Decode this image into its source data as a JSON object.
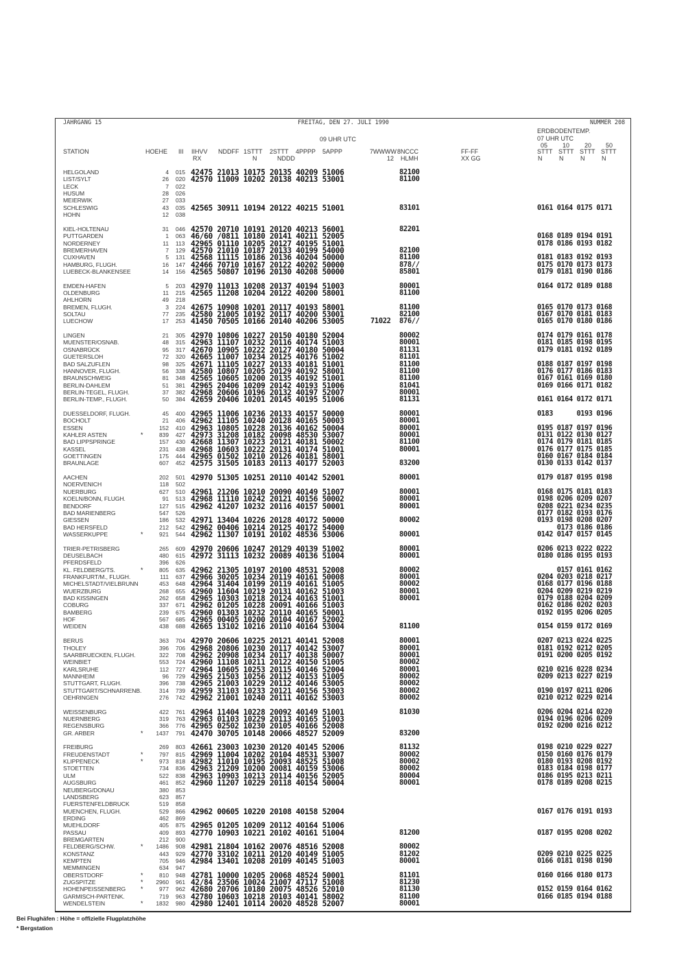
{
  "header": {
    "volume": "JAHRGANG 15",
    "date": "FREITAG, DEN 27. JULI 1990",
    "number": "NUMMER 208",
    "obs_time": "09 UHR UTC",
    "soil_title": "ERDBODENTEMP.",
    "soil_time": "07 UHR UTC",
    "soil_depths": [
      "05",
      "10",
      "20",
      "50"
    ]
  },
  "columns": {
    "station": "STATION",
    "hoehe": "HOEHE",
    "iii": "III",
    "g1": "IIHVV",
    "g1b": "RX",
    "g2": "NDDFF",
    "g3": "1STTT",
    "g3b": "N",
    "g4": "2STTT",
    "g4b": "NDDD",
    "g5": "4PPPP",
    "g6": "5APPP",
    "w7": "7WWWW",
    "w7b": "12",
    "g8": "8NCCC",
    "g8b": "HLMH",
    "ff": "FF-FF",
    "ffb": "XX GG",
    "soil": [
      "STTT",
      "STTT",
      "STTT",
      "STTT"
    ],
    "soilb": [
      "N",
      "N",
      "N",
      "N"
    ]
  },
  "groups": [
    {
      "rows": [
        [
          "HELGOLAND",
          "",
          "4",
          "015",
          "42475 21013 10175 20135 40209 51006",
          "",
          "82100",
          ""
        ],
        [
          "LIST/SYLT",
          "",
          "26",
          "020",
          "42570 11009 10202 20138 40213 53001",
          "",
          "81100",
          ""
        ],
        [
          "LECK",
          "",
          "7",
          "022",
          "",
          "",
          "",
          ""
        ],
        [
          "HUSUM",
          "",
          "28",
          "026",
          "",
          "",
          "",
          ""
        ],
        [
          "MEIERWIK",
          "",
          "27",
          "033",
          "",
          "",
          "",
          ""
        ],
        [
          "SCHLESWIG",
          "",
          "43",
          "035",
          "42565 30911 10194 20122 40215 51001",
          "",
          "83101",
          "0161 0164 0175 0171"
        ],
        [
          "HOHN",
          "",
          "12",
          "038",
          "",
          "",
          "",
          ""
        ]
      ]
    },
    {
      "rows": [
        [
          "KIEL-HOLTENAU",
          "",
          "31",
          "046",
          "42570 20710 10191 20120 40213 56001",
          "",
          "82201",
          ""
        ],
        [
          "PUTTGARDEN",
          "",
          "1",
          "063",
          "46/60 /0811 10180 20141 40211 52005",
          "",
          "",
          "0168 0189 0194 0191"
        ],
        [
          "NORDERNEY",
          "",
          "11",
          "113",
          "42965 01110 10205 20127 40195 51001",
          "",
          "",
          "0178 0186 0193 0182"
        ],
        [
          "BREMERHAVEN",
          "",
          "7",
          "129",
          "42570 21010 10187 20133 40199 54000",
          "",
          "82100",
          ""
        ],
        [
          "CUXHAVEN",
          "",
          "5",
          "131",
          "42568 11115 10186 20136 40204 50000",
          "",
          "81100",
          "0181 0183 0192 0193"
        ],
        [
          "HAMBURG, FLUGH.",
          "",
          "16",
          "147",
          "42466 70710 10167 20122 40202 50000",
          "",
          "878//",
          "0175 0170 0173 0173"
        ],
        [
          "LUEBECK-BLANKENSEE",
          "",
          "14",
          "156",
          "42565 50807 10196 20130 40208 50000",
          "",
          "85801",
          "0179 0181 0190 0186"
        ]
      ]
    },
    {
      "rows": [
        [
          "EMDEN-HAFEN",
          "",
          "5",
          "203",
          "42970 11013 10208 20137 40194 51003",
          "",
          "80001",
          "0164 0172 0189 0188"
        ],
        [
          "OLDENBURG",
          "",
          "11",
          "215",
          "42565 11208 10204 20122 40200 58001",
          "",
          "81100",
          ""
        ],
        [
          "AHLHORN",
          "",
          "49",
          "218",
          "",
          "",
          "",
          ""
        ],
        [
          "BREMEN, FLUGH.",
          "",
          "3",
          "224",
          "42675 10908 10201 20117 40193 58001",
          "",
          "81100",
          "0165 0170 0173 0168"
        ],
        [
          "SOLTAU",
          "",
          "77",
          "235",
          "42580 21005 10192 20117 40200 53001",
          "",
          "82100",
          "0167 0170 0181 0183"
        ],
        [
          "LUECHOW",
          "",
          "17",
          "253",
          "41450 70505 10166 20140 40206 53005",
          "71022",
          "876//",
          "0165 0170 0180 0186"
        ]
      ]
    },
    {
      "rows": [
        [
          "LINGEN",
          "",
          "21",
          "305",
          "42970 10806 10227 20150 40180 52004",
          "",
          "80002",
          "0174 0179 0161 0178"
        ],
        [
          "MUENSTER/OSNAB.",
          "",
          "48",
          "315",
          "42963 11107 10232 20116 40174 51003",
          "",
          "80001",
          "0181 0185 0198 0195"
        ],
        [
          "OSNABRÜCK",
          "",
          "95",
          "317",
          "42670 10905 10222 20127 40180 50004",
          "",
          "81131",
          "0179 0181 0192 0189"
        ],
        [
          "GUETERSLOH",
          "",
          "72",
          "320",
          "42665 11007 10234 20125 40176 51002",
          "",
          "81101",
          ""
        ],
        [
          "BAD SALZUFLEN",
          "",
          "98",
          "325",
          "42671 11105 10227 20133 40181 51001",
          "",
          "81100",
          "0188 0187 0197 0198"
        ],
        [
          "HANNOVER, FLUGH.",
          "",
          "56",
          "338",
          "42580 10807 10205 20129 40192 58001",
          "",
          "81100",
          "0176 0177 0186 0183"
        ],
        [
          "BRAUNSCHWEIG",
          "",
          "81",
          "348",
          "42565 10605 10200 20135 40192 51001",
          "",
          "81100",
          "0167 0161 0169 0180"
        ],
        [
          "BERLIN-DAHLEM",
          "",
          "51",
          "381",
          "42965 20406 10209 20142 40193 51006",
          "",
          "81041",
          "0169 0166 0171 0182"
        ],
        [
          "BERLIN-TEGEL, FLUGH.",
          "",
          "37",
          "382",
          "42968 20606 10196 20132 40197 52007",
          "",
          "80001",
          ""
        ],
        [
          "BERLIN-TEMP., FLUGH.",
          "",
          "50",
          "384",
          "42659 20406 10201 20145 40195 51006",
          "",
          "81131",
          "0161 0164 0172 0171"
        ]
      ]
    },
    {
      "rows": [
        [
          "DUESSELDORF, FLUGH.",
          "",
          "45",
          "400",
          "42965 11006 10236 20133 40157 50000",
          "",
          "80001",
          "0183      0193 0196"
        ],
        [
          "BOCHOLT",
          "",
          "21",
          "406",
          "42962 11105 10240 20128 40165 50003",
          "",
          "80001",
          ""
        ],
        [
          "ESSEN",
          "",
          "152",
          "410",
          "42963 10805 10228 20136 40162 50004",
          "",
          "80001",
          "0195 0187 0197 0196"
        ],
        [
          "KAHLER ASTEN",
          "*",
          "839",
          "427",
          "42973 31208 10182 20098 48530 53007",
          "",
          "80001",
          "0131 0122 0130 0127"
        ],
        [
          "BAD LIPPSPRINGE",
          "",
          "157",
          "430",
          "42668 11307 10223 20121 40181 50002",
          "",
          "81100",
          "0174 0179 0181 0185"
        ],
        [
          "KASSEL",
          "",
          "231",
          "438",
          "42968 10603 10222 20131 40174 51001",
          "",
          "80001",
          "0176 0177 0175 0185"
        ],
        [
          "GOETTINGEN",
          "",
          "175",
          "444",
          "42965 01502 10210 20126 40181 58001",
          "",
          "",
          "0160 0167 0184 0184"
        ],
        [
          "BRAUNLAGE",
          "",
          "607",
          "452",
          "42575 31505 10183 20113 40177 52003",
          "",
          "83200",
          "0130 0133 0142 0137"
        ]
      ]
    },
    {
      "rows": [
        [
          "AACHEN",
          "",
          "202",
          "501",
          "42970 51305 10251 20110 40142 52001",
          "",
          "80001",
          "0179 0187 0195 0198"
        ],
        [
          "NOERVENICH",
          "",
          "118",
          "502",
          "",
          "",
          "",
          ""
        ],
        [
          "NUERBURG",
          "",
          "627",
          "510",
          "42961 21206 10210 20090 40149 51007",
          "",
          "80001",
          "0168 0175 0181 0183"
        ],
        [
          "KOELN/BONN, FLUGH.",
          "",
          "91",
          "513",
          "42968 11110 10242 20121 40156 50002",
          "",
          "80001",
          "0198 0206 0209 0207"
        ],
        [
          "BENDORF",
          "",
          "127",
          "515",
          "42962 41207 10232 20116 40157 50001",
          "",
          "80001",
          "0208 0221 0234 0235"
        ],
        [
          "BAD MARIENBERG",
          "",
          "547",
          "526",
          "",
          "",
          "",
          "0177 0182 0193 0176"
        ],
        [
          "GIESSEN",
          "",
          "186",
          "532",
          "42971 13404 10226 20128 40172 50000",
          "",
          "80002",
          "0193 0198 0208 0207"
        ],
        [
          "BAD HERSFELD",
          "",
          "212",
          "542",
          "42962 00406 10214 20125 40172 54000",
          "",
          "",
          "     0173 0186 0186"
        ],
        [
          "WASSERKUPPE",
          "*",
          "921",
          "544",
          "42962 11307 10191 20102 48536 53006",
          "",
          "80001",
          "0142 0147 0157 0145"
        ]
      ]
    },
    {
      "rows": [
        [
          "TRIER-PETRISBERG",
          "",
          "265",
          "609",
          "42970 20606 10247 20129 40139 51002",
          "",
          "80001",
          "0206 0213 0222 0222"
        ],
        [
          "DEUSELBACH",
          "",
          "480",
          "615",
          "42972 31113 10232 20089 40136 51004",
          "",
          "80001",
          "0180 0186 0195 0193"
        ],
        [
          "PFERDSFELD",
          "",
          "396",
          "626",
          "",
          "",
          "",
          ""
        ],
        [
          "KL. FELDBERG/TS.",
          "*",
          "805",
          "635",
          "42962 21305 10197 20100 48531 52008",
          "",
          "80002",
          "     0157 0161 0162"
        ],
        [
          "FRANKFURT/M., FLUGH.",
          "",
          "111",
          "637",
          "42966 30205 10234 20119 40161 50008",
          "",
          "80001",
          "0204 0203 0218 0217"
        ],
        [
          "MICHELSTADT/VIELBRUNN",
          "",
          "453",
          "648",
          "42964 31404 10199 20119 40161 51005",
          "",
          "80002",
          "0168 0177 0196 0188"
        ],
        [
          "WUERZBURG",
          "",
          "268",
          "655",
          "42960 11604 10219 20131 40162 51003",
          "",
          "80001",
          "0204 0209 0219 0219"
        ],
        [
          "BAD KISSINGEN",
          "",
          "262",
          "658",
          "42965 10303 10218 20124 40163 51001",
          "",
          "80001",
          "0179 0188 0204 0209"
        ],
        [
          "COBURG",
          "",
          "337",
          "671",
          "42962 01205 10228 20091 40166 51003",
          "",
          "",
          "0162 0186 0202 0203"
        ],
        [
          "BAMBERG",
          "",
          "239",
          "675",
          "42960 01303 10232 20110 40165 50001",
          "",
          "",
          "0192 0195 0206 0205"
        ],
        [
          "HOF",
          "",
          "567",
          "685",
          "42965 00405 10200 20104 40167 52002",
          "",
          "",
          ""
        ],
        [
          "WEIDEN",
          "",
          "438",
          "688",
          "42665 13102 10216 20110 40164 53004",
          "",
          "81100",
          "0154 0159 0172 0169"
        ]
      ]
    },
    {
      "rows": [
        [
          "BERUS",
          "",
          "363",
          "704",
          "42970 20606 10225 20121 40141 52008",
          "",
          "80001",
          "0207 0213 0224 0225"
        ],
        [
          "THOLEY",
          "",
          "396",
          "706",
          "42968 20806 10230 20117 40142 53007",
          "",
          "80001",
          "0181 0192 0212 0205"
        ],
        [
          "SAARBRUECKEN, FLUGH.",
          "",
          "322",
          "708",
          "42962 20908 10234 20117 40138 50007",
          "",
          "80001",
          "0191 0200 0205 0192"
        ],
        [
          "WEINBIET",
          "",
          "553",
          "724",
          "42960 11108 10211 20122 40150 51005",
          "",
          "80002",
          ""
        ],
        [
          "KARLSRUHE",
          "",
          "112",
          "727",
          "42964 10605 10253 20115 40146 52004",
          "",
          "80001",
          "0210 0216 0228 0234"
        ],
        [
          "MANNHEIM",
          "",
          "96",
          "729",
          "42965 21503 10256 20112 40153 51005",
          "",
          "80002",
          "0209 0213 0227 0219"
        ],
        [
          "STUTTGART, FLUGH.",
          "",
          "396",
          "738",
          "42965 21003 10229 20112 40146 53005",
          "",
          "80002",
          ""
        ],
        [
          "STUTTGART/SCHNARRENB.",
          "",
          "314",
          "739",
          "42959 31103 10233 20121 40156 53003",
          "",
          "80002",
          "0190 0197 0211 0206"
        ],
        [
          "OEHRINGEN",
          "",
          "276",
          "742",
          "42962 21001 10240 20111 40162 53003",
          "",
          "80002",
          "0210 0212 0229 0214"
        ]
      ]
    },
    {
      "rows": [
        [
          "WEISSENBURG",
          "",
          "422",
          "761",
          "42964 11404 10228 20092 40149 51001",
          "",
          "81030",
          "0206 0204 0214 0220"
        ],
        [
          "NUERNBERG",
          "",
          "319",
          "763",
          "42963 01103 10229 20113 40165 51003",
          "",
          "",
          "0194 0196 0206 0209"
        ],
        [
          "REGENSBURG",
          "",
          "366",
          "776",
          "42965 02502 10230 20105 40166 52008",
          "",
          "",
          "0192 0200 0216 0212"
        ],
        [
          "GR. ARBER",
          "*",
          "1437",
          "791",
          "42470 30705 10148 20066 48527 52009",
          "",
          "83200",
          ""
        ]
      ]
    },
    {
      "rows": [
        [
          "FREIBURG",
          "",
          "269",
          "803",
          "42661 23003 10230 20120 40145 52006",
          "",
          "81132",
          "0198 0210 0229 0227"
        ],
        [
          "FREUDENSTADT",
          "*",
          "797",
          "815",
          "42969 11004 10202 20104 48531 53007",
          "",
          "80002",
          "0150 0160 0176 0179"
        ],
        [
          "KLIPPENECK",
          "*",
          "973",
          "818",
          "42982 11010 10195 20093 48525 51008",
          "",
          "80002",
          "0180 0193 0208 0192"
        ],
        [
          "STOETTEN",
          "",
          "734",
          "836",
          "42963 21209 10200 20081 40159 53006",
          "",
          "80002",
          "0183 0184 0198 0177"
        ],
        [
          "ULM",
          "",
          "522",
          "838",
          "42963 10903 10213 20114 40156 52005",
          "",
          "80004",
          "0186 0195 0213 0211"
        ],
        [
          "AUGSBURG",
          "",
          "461",
          "852",
          "42960 11207 10229 20118 40154 50004",
          "",
          "80001",
          "0178 0189 0208 0215"
        ],
        [
          "NEUBERG/DONAU",
          "",
          "380",
          "853",
          "",
          "",
          "",
          ""
        ],
        [
          "LANDSBERG",
          "",
          "623",
          "857",
          "",
          "",
          "",
          ""
        ],
        [
          "FUERSTENFELDBRUCK",
          "",
          "519",
          "858",
          "",
          "",
          "",
          ""
        ],
        [
          "MUENCHEN, FLUGH.",
          "",
          "529",
          "866",
          "42962 00605 10220 20108 40158 52004",
          "",
          "",
          "0167 0176 0191 0193"
        ],
        [
          "ERDING",
          "",
          "462",
          "869",
          "",
          "",
          "",
          ""
        ],
        [
          "MUEHLDORF",
          "",
          "405",
          "875",
          "42965 01205 10209 20112 40164 51006",
          "",
          "",
          ""
        ],
        [
          "PASSAU",
          "",
          "409",
          "893",
          "42770 10903 10221 20102 40161 51004",
          "",
          "81200",
          "0187 0195 0208 0202"
        ],
        [
          "BREMGARTEN",
          "",
          "212",
          "900",
          "",
          "",
          "",
          ""
        ],
        [
          "FELDBERG/SCHW.",
          "*",
          "1486",
          "908",
          "42981 21804 10162 20076 48516 52008",
          "",
          "80002",
          ""
        ],
        [
          "KONSTANZ",
          "",
          "443",
          "929",
          "42770 33102 10211 20120 40149 51005",
          "",
          "81202",
          "0209 0210 0225 0225"
        ],
        [
          "KEMPTEN",
          "",
          "705",
          "946",
          "42984 13401 10208 20109 40145 51003",
          "",
          "80001",
          "0166 0181 0198 0190"
        ],
        [
          "MEMMINGEN",
          "",
          "634",
          "947",
          "",
          "",
          "",
          ""
        ],
        [
          "OBERSTDORF",
          "*",
          "810",
          "948",
          "42781 10000 10205 20068 48524 50001",
          "",
          "81101",
          "0160 0166 0180 0173"
        ],
        [
          "ZUGSPITZE",
          "*",
          "2960",
          "961",
          "42/84 23506 10024 21007 47117 51008",
          "",
          "81230",
          ""
        ],
        [
          "HOHENPEISSENBERG",
          "*",
          "977",
          "962",
          "42680 20706 10180 20075 48526 52010",
          "",
          "81130",
          "0152 0159 0164 0162"
        ],
        [
          "GARMISCH-PARTENK.",
          "",
          "719",
          "963",
          "42780 10603 10218 20103 40141 58002",
          "",
          "81100",
          "0166 0185 0194 0188"
        ],
        [
          "WENDELSTEIN",
          "*",
          "1832",
          "980",
          "42980 12401 10114 20020 48528 52007",
          "",
          "80001",
          ""
        ]
      ]
    }
  ],
  "footer": {
    "note1": "Bei Flughäfen : Höhe = offizielle Flugplatzhöhe",
    "note2": "* Bergstation"
  }
}
